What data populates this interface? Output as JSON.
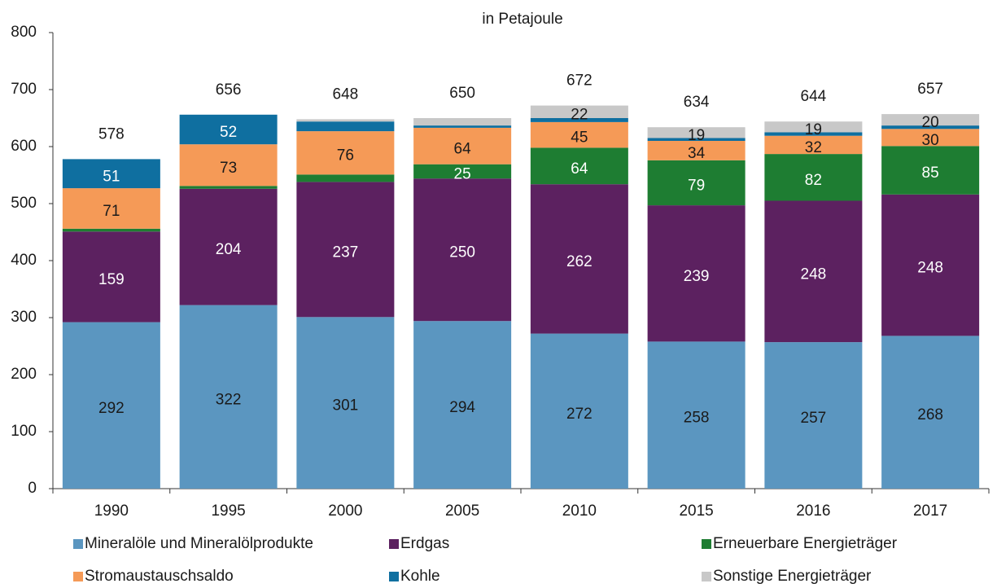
{
  "chart_data": {
    "type": "stacked_bar",
    "subtitle": "in Petajoule",
    "categories": [
      "1990",
      "1995",
      "2000",
      "2005",
      "2010",
      "2015",
      "2016",
      "2017"
    ],
    "totals": [
      578,
      656,
      648,
      650,
      672,
      634,
      644,
      657
    ],
    "ylim": [
      0,
      800
    ],
    "yticks": [
      0,
      100,
      200,
      300,
      400,
      500,
      600,
      700,
      800
    ],
    "series": [
      {
        "name": "Mineralöle und Mineralölprodukte",
        "color": "#5b96c0",
        "label_color": "#1a1a1a",
        "values": [
          292,
          322,
          301,
          294,
          272,
          258,
          257,
          268
        ],
        "value_labels": [
          "292",
          "322",
          "301",
          "294",
          "272",
          "258",
          "257",
          "268"
        ]
      },
      {
        "name": "Erdgas",
        "color": "#5c2160",
        "label_color": "#ffffff",
        "values": [
          159,
          204,
          237,
          250,
          262,
          239,
          248,
          248
        ],
        "value_labels": [
          "159",
          "204",
          "237",
          "250",
          "262",
          "239",
          "248",
          "248"
        ]
      },
      {
        "name": "Erneuerbare Energieträger",
        "color": "#1e7d32",
        "label_color": "#ffffff",
        "values": [
          5,
          5,
          13,
          25,
          64,
          79,
          82,
          85
        ],
        "value_labels": [
          null,
          null,
          null,
          "25",
          "64",
          "79",
          "82",
          "85"
        ]
      },
      {
        "name": "Stromaustauschsaldo",
        "color": "#f59a57",
        "label_color": "#1a1a1a",
        "values": [
          71,
          73,
          76,
          64,
          45,
          34,
          32,
          30
        ],
        "value_labels": [
          "71",
          "73",
          "76",
          "64",
          "45",
          "34",
          "32",
          "30"
        ]
      },
      {
        "name": "Kohle",
        "color": "#0f6fa0",
        "label_color": "#ffffff",
        "values": [
          51,
          52,
          17,
          4,
          7,
          5,
          6,
          6
        ],
        "value_labels": [
          "51",
          "52",
          null,
          null,
          null,
          null,
          null,
          null
        ]
      },
      {
        "name": "Sonstige Energieträger",
        "color": "#c8c8c8",
        "label_color": "#1a1a1a",
        "values": [
          0,
          0,
          4,
          13,
          22,
          19,
          19,
          20
        ],
        "value_labels": [
          null,
          null,
          null,
          null,
          "22",
          "19",
          "19",
          "20"
        ]
      }
    ]
  }
}
